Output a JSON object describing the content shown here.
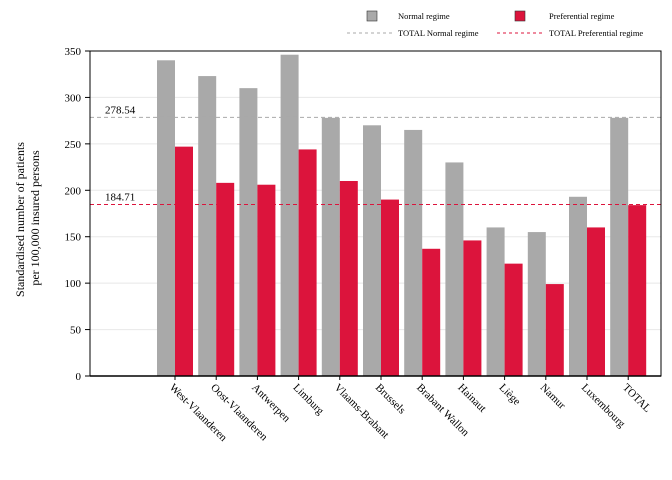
{
  "chart_data": {
    "type": "bar",
    "ylabel": "Standardised number of patients\nper 100,000 insured persons",
    "ylim": [
      0,
      350
    ],
    "yticks": [
      0,
      50,
      100,
      150,
      200,
      250,
      300,
      350
    ],
    "grid": true,
    "legend_position": "top",
    "categories": [
      "West-Vlaanderen",
      "Oost-Vlaanderen",
      "Antwerpen",
      "Limburg",
      "Vlaams-Brabant",
      "Brussels",
      "Brabant Wallon",
      "Hainaut",
      "Liège",
      "Namur",
      "Luxembourg",
      "TOTAL"
    ],
    "series": [
      {
        "name": "Normal regime",
        "color": "#a9a9a9",
        "values": [
          340,
          323,
          310,
          346,
          278,
          270,
          265,
          230,
          160,
          155,
          193,
          278
        ]
      },
      {
        "name": "Preferential regime",
        "color": "#dc143c",
        "values": [
          247,
          208,
          206,
          244,
          210,
          190,
          137,
          146,
          121,
          99,
          160,
          184
        ]
      }
    ],
    "reference_lines": [
      {
        "name": "TOTAL Normal regime",
        "value": 278.54,
        "label": "278.54",
        "color": "#a9a9a9"
      },
      {
        "name": "TOTAL Preferential regime",
        "value": 184.71,
        "label": "184.71",
        "color": "#dc143c"
      }
    ]
  }
}
